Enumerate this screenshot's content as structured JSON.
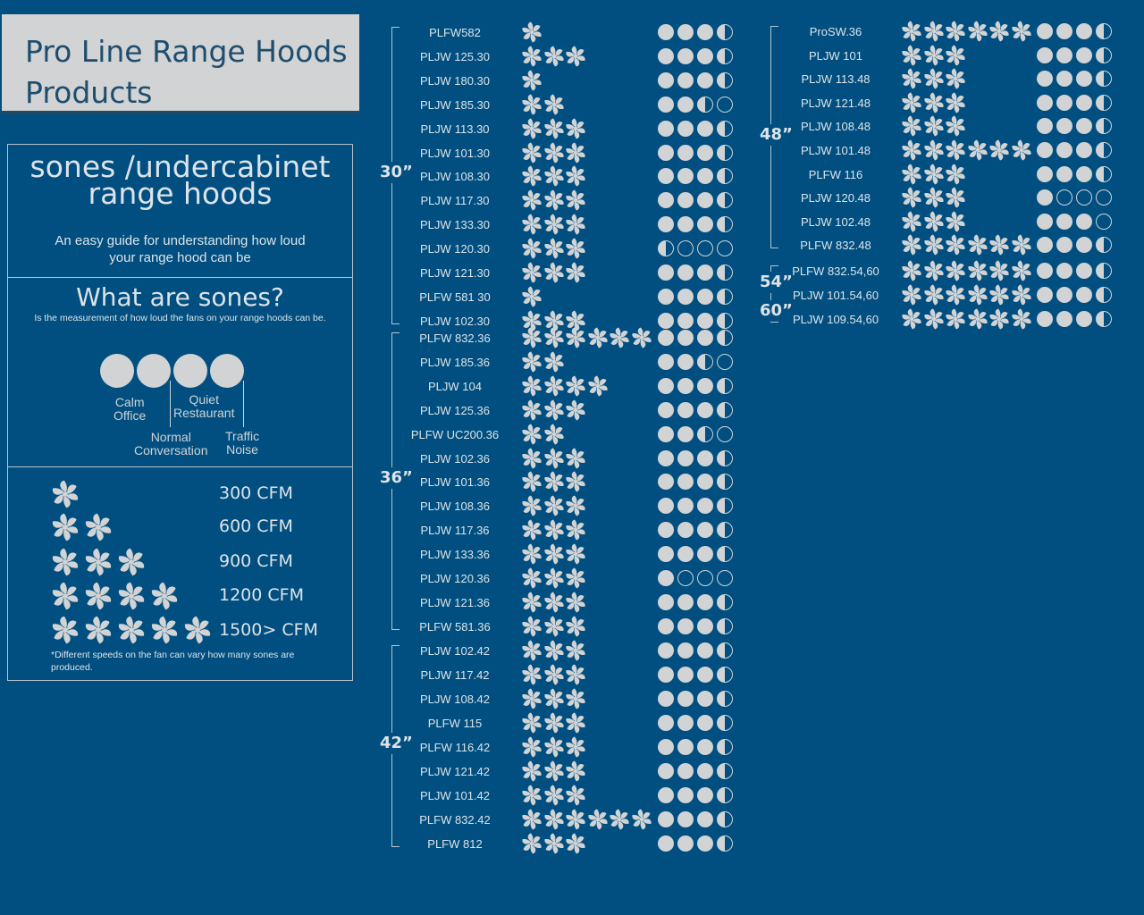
{
  "title": {
    "line1": "Pro Line Range Hoods",
    "line2": "Products"
  },
  "intro": {
    "heading_line1": "sones /undercabinet",
    "heading_line2": "range hoods",
    "sub_line1": "An easy guide for understanding how loud",
    "sub_line2": "your range hood can be"
  },
  "sones": {
    "heading": "What are sones?",
    "sub": "Is the measurement of how loud the fans on your range hoods can be.",
    "labels": [
      {
        "line1": "Calm",
        "line2": "Office"
      },
      {
        "line1": "Quiet",
        "line2": "Restaurant"
      },
      {
        "line1": "Normal",
        "line2": "Conversation"
      },
      {
        "line1": "Traffic",
        "line2": "Noise"
      }
    ]
  },
  "cfm_legend": {
    "rows": [
      {
        "fans": 1,
        "label": "300 CFM"
      },
      {
        "fans": 2,
        "label": "600 CFM"
      },
      {
        "fans": 3,
        "label": "900 CFM"
      },
      {
        "fans": 4,
        "label": "1200 CFM"
      },
      {
        "fans": 5,
        "label": "1500> CFM"
      }
    ],
    "note": "*Different speeds on the fan can vary how many sones are produced."
  },
  "colors": {
    "background": "#004f80",
    "icon": "#d1d3d4",
    "title_box": "#d1d3d4",
    "title_text": "#1e4d6e"
  },
  "groups_left": [
    {
      "size": "30”",
      "models": [
        {
          "name": "PLFW582",
          "fans": 1,
          "sones": 3.5
        },
        {
          "name": "PLJW 125.30",
          "fans": 3,
          "sones": 3.5
        },
        {
          "name": "PLJW 180.30",
          "fans": 1,
          "sones": 3.5
        },
        {
          "name": "PLJW 185.30",
          "fans": 2,
          "sones": 2.5
        },
        {
          "name": "PLJW 113.30",
          "fans": 3,
          "sones": 3.5
        },
        {
          "name": "PLJW 101.30",
          "fans": 3,
          "sones": 3.5
        },
        {
          "name": "PLJW 108.30",
          "fans": 3,
          "sones": 3.5
        },
        {
          "name": "PLJW 117.30",
          "fans": 3,
          "sones": 3.5
        },
        {
          "name": "PLJW 133.30",
          "fans": 3,
          "sones": 3.5
        },
        {
          "name": "PLJW 120.30",
          "fans": 3,
          "sones": 0.5
        },
        {
          "name": "PLJW 121.30",
          "fans": 3,
          "sones": 3.5
        },
        {
          "name": "PLFW 581 30",
          "fans": 1,
          "sones": 3.5
        },
        {
          "name": "PLJW 102.30",
          "fans": 3,
          "sones": 3.5
        }
      ]
    },
    {
      "size": "36”",
      "models": [
        {
          "name": "PLFW 832.36",
          "fans": 6,
          "sones": 3.5
        },
        {
          "name": "PLJW 185.36",
          "fans": 2,
          "sones": 2.5
        },
        {
          "name": "PLJW 104",
          "fans": 4,
          "sones": 3.5
        },
        {
          "name": "PLJW 125.36",
          "fans": 3,
          "sones": 3.5
        },
        {
          "name": "PLFW UC200.36",
          "fans": 2,
          "sones": 2.5
        },
        {
          "name": "PLJW 102.36",
          "fans": 3,
          "sones": 3.5
        },
        {
          "name": "PLJW 101.36",
          "fans": 3,
          "sones": 3.5
        },
        {
          "name": "PLJW 108.36",
          "fans": 3,
          "sones": 3.5
        },
        {
          "name": "PLJW 117.36",
          "fans": 3,
          "sones": 3.5
        },
        {
          "name": "PLJW 133.36",
          "fans": 3,
          "sones": 3.5
        },
        {
          "name": "PLJW 120.36",
          "fans": 3,
          "sones": 1
        },
        {
          "name": "PLJW 121.36",
          "fans": 3,
          "sones": 3.5
        },
        {
          "name": "PLFW 581.36",
          "fans": 3,
          "sones": 3.5
        }
      ]
    },
    {
      "size": "42”",
      "models": [
        {
          "name": "PLJW 102.42",
          "fans": 3,
          "sones": 3.5
        },
        {
          "name": "PLJW 117.42",
          "fans": 3,
          "sones": 3.5
        },
        {
          "name": "PLJW 108.42",
          "fans": 3,
          "sones": 3.5
        },
        {
          "name": "PLFW 115",
          "fans": 3,
          "sones": 3.5
        },
        {
          "name": "PLFW 116.42",
          "fans": 3,
          "sones": 3.5
        },
        {
          "name": "PLJW 121.42",
          "fans": 3,
          "sones": 3.5
        },
        {
          "name": "PLJW 101.42",
          "fans": 3,
          "sones": 3.5
        },
        {
          "name": "PLFW 832.42",
          "fans": 6,
          "sones": 3.5
        },
        {
          "name": "PLFW 812",
          "fans": 3,
          "sones": 3.5
        }
      ]
    }
  ],
  "groups_right": [
    {
      "size": "48”",
      "models": [
        {
          "name": "ProSW.36",
          "fans": 6,
          "sones": 3.5
        },
        {
          "name": "PLJW 101",
          "fans": 3,
          "sones": 3.5
        },
        {
          "name": "PLJW 113.48",
          "fans": 3,
          "sones": 3.5
        },
        {
          "name": "PLJW 121.48",
          "fans": 3,
          "sones": 3.5
        },
        {
          "name": "PLJW 108.48",
          "fans": 3,
          "sones": 3.5
        },
        {
          "name": "PLJW 101.48",
          "fans": 6,
          "sones": 3.5
        },
        {
          "name": "PLFW 116",
          "fans": 3,
          "sones": 3.5
        },
        {
          "name": "PLJW 120.48",
          "fans": 3,
          "sones": 1
        },
        {
          "name": "PLJW 102.48",
          "fans": 3,
          "sones": 3
        },
        {
          "name": "PLFW 832.48",
          "fans": 6,
          "sones": 3.5
        }
      ]
    },
    {
      "size": "54”",
      "size2": "60”",
      "models": [
        {
          "name": "PLFW 832.54,60",
          "fans": 6,
          "sones": 3.5
        },
        {
          "name": "PLJW 101.54,60",
          "fans": 6,
          "sones": 3.5
        },
        {
          "name": "PLJW 109.54,60",
          "fans": 6,
          "sones": 3.5
        }
      ]
    }
  ]
}
